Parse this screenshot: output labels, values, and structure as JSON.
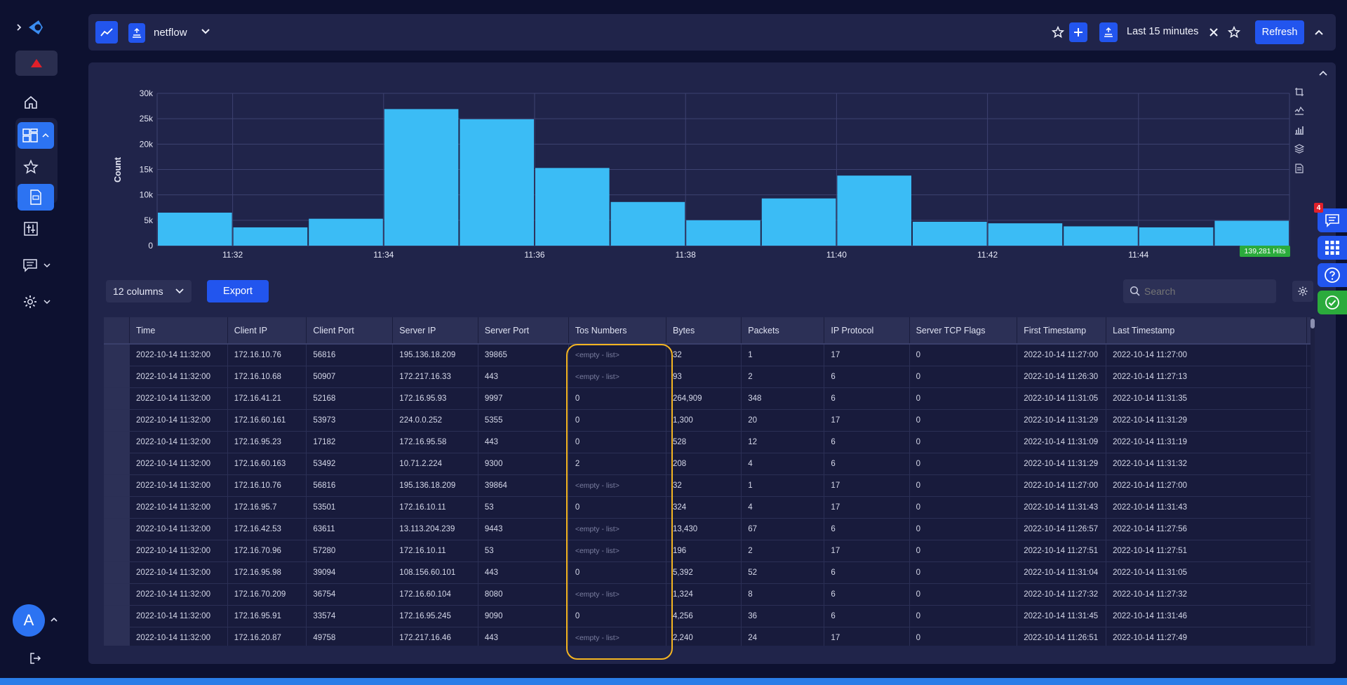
{
  "topbar": {
    "index_name": "netflow",
    "time_range": "Last 15 minutes",
    "refresh_label": "Refresh"
  },
  "chart_data": {
    "type": "bar",
    "ylabel": "Count",
    "xlabel": "",
    "ylim": [
      0,
      30000
    ],
    "yticks": [
      "0",
      "5k",
      "10k",
      "15k",
      "20k",
      "25k",
      "30k"
    ],
    "xticks": [
      "11:32",
      "11:34",
      "11:36",
      "11:38",
      "11:40",
      "11:42",
      "11:44"
    ],
    "values": [
      6500,
      3600,
      5300,
      26900,
      24900,
      15300,
      8600,
      5000,
      9300,
      13800,
      4700,
      4400,
      3800,
      3600,
      4900
    ],
    "hits_badge": "139,281 Hits"
  },
  "toolbar": {
    "columns_label": "12 columns",
    "export_label": "Export",
    "search_placeholder": "Search"
  },
  "table": {
    "headers": [
      "Time",
      "Client IP",
      "Client Port",
      "Server IP",
      "Server Port",
      "Tos Numbers",
      "Bytes",
      "Packets",
      "IP Protocol",
      "Server TCP Flags",
      "First Timestamp",
      "Last Timestamp"
    ],
    "rows": [
      [
        "2022-10-14 11:32:00",
        "172.16.10.76",
        "56816",
        "195.136.18.209",
        "39865",
        "<empty - list>",
        "32",
        "1",
        "17",
        "0",
        "2022-10-14 11:27:00",
        "2022-10-14 11:27:00"
      ],
      [
        "2022-10-14 11:32:00",
        "172.16.10.68",
        "50907",
        "172.217.16.33",
        "443",
        "<empty - list>",
        "93",
        "2",
        "6",
        "0",
        "2022-10-14 11:26:30",
        "2022-10-14 11:27:13"
      ],
      [
        "2022-10-14 11:32:00",
        "172.16.41.21",
        "52168",
        "172.16.95.93",
        "9997",
        "0",
        "264,909",
        "348",
        "6",
        "0",
        "2022-10-14 11:31:05",
        "2022-10-14 11:31:35"
      ],
      [
        "2022-10-14 11:32:00",
        "172.16.60.161",
        "53973",
        "224.0.0.252",
        "5355",
        "0",
        "1,300",
        "20",
        "17",
        "0",
        "2022-10-14 11:31:29",
        "2022-10-14 11:31:29"
      ],
      [
        "2022-10-14 11:32:00",
        "172.16.95.23",
        "17182",
        "172.16.95.58",
        "443",
        "0",
        "528",
        "12",
        "6",
        "0",
        "2022-10-14 11:31:09",
        "2022-10-14 11:31:19"
      ],
      [
        "2022-10-14 11:32:00",
        "172.16.60.163",
        "53492",
        "10.71.2.224",
        "9300",
        "2",
        "208",
        "4",
        "6",
        "0",
        "2022-10-14 11:31:29",
        "2022-10-14 11:31:32"
      ],
      [
        "2022-10-14 11:32:00",
        "172.16.10.76",
        "56816",
        "195.136.18.209",
        "39864",
        "<empty - list>",
        "32",
        "1",
        "17",
        "0",
        "2022-10-14 11:27:00",
        "2022-10-14 11:27:00"
      ],
      [
        "2022-10-14 11:32:00",
        "172.16.95.7",
        "53501",
        "172.16.10.11",
        "53",
        "0",
        "324",
        "4",
        "17",
        "0",
        "2022-10-14 11:31:43",
        "2022-10-14 11:31:43"
      ],
      [
        "2022-10-14 11:32:00",
        "172.16.42.53",
        "63611",
        "13.113.204.239",
        "9443",
        "<empty - list>",
        "13,430",
        "67",
        "6",
        "0",
        "2022-10-14 11:26:57",
        "2022-10-14 11:27:56"
      ],
      [
        "2022-10-14 11:32:00",
        "172.16.70.96",
        "57280",
        "172.16.10.11",
        "53",
        "<empty - list>",
        "196",
        "2",
        "17",
        "0",
        "2022-10-14 11:27:51",
        "2022-10-14 11:27:51"
      ],
      [
        "2022-10-14 11:32:00",
        "172.16.95.98",
        "39094",
        "108.156.60.101",
        "443",
        "0",
        "5,392",
        "52",
        "6",
        "0",
        "2022-10-14 11:31:04",
        "2022-10-14 11:31:05"
      ],
      [
        "2022-10-14 11:32:00",
        "172.16.70.209",
        "36754",
        "172.16.60.104",
        "8080",
        "<empty - list>",
        "1,324",
        "8",
        "6",
        "0",
        "2022-10-14 11:27:32",
        "2022-10-14 11:27:32"
      ],
      [
        "2022-10-14 11:32:00",
        "172.16.95.91",
        "33574",
        "172.16.95.245",
        "9090",
        "0",
        "4,256",
        "36",
        "6",
        "0",
        "2022-10-14 11:31:45",
        "2022-10-14 11:31:46"
      ],
      [
        "2022-10-14 11:32:00",
        "172.16.20.87",
        "49758",
        "172.217.16.46",
        "443",
        "<empty - list>",
        "2,240",
        "24",
        "17",
        "0",
        "2022-10-14 11:26:51",
        "2022-10-14 11:27:49"
      ]
    ]
  },
  "sidebar": {
    "avatar_letter": "A"
  },
  "right_side": {
    "notification_count": "4"
  },
  "colors": {
    "accent": "#2255ee",
    "bar": "#3bbcf5",
    "highlight": "#f5b521",
    "hits_badge": "#2bab3c",
    "alert": "#e0202a"
  }
}
